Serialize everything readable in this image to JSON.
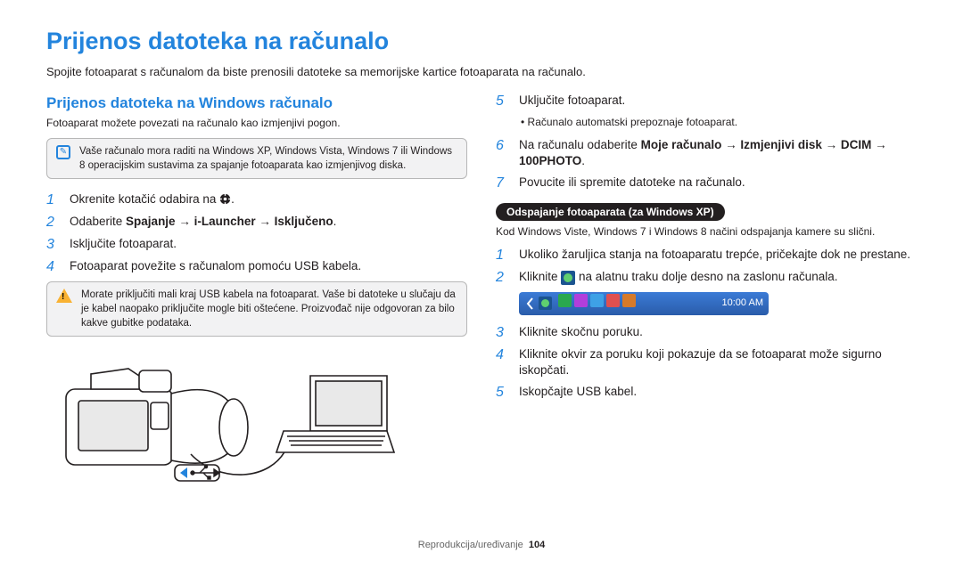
{
  "main_title": "Prijenos datoteka na računalo",
  "subtitle": "Spojite fotoaparat s računalom da biste prenosili datoteke sa memorijske kartice fotoaparata na računalo.",
  "left": {
    "heading": "Prijenos datoteka na Windows računalo",
    "desc": "Fotoaparat možete povezati na računalo kao izmjenjivi pogon.",
    "infobox": "Vaše računalo mora raditi na Windows XP, Windows Vista, Windows 7 ili Windows 8 operacijskim sustavima za spajanje fotoaparata kao izmjenjivog diska.",
    "steps": {
      "s1": "Okrenite kotačić odabira na ",
      "s2_pre": "Odaberite ",
      "s2_bold": "Spajanje → i-Launcher → Isključeno",
      "s3": "Isključite fotoaparat.",
      "s4": "Fotoaparat povežite s računalom pomoću USB kabela."
    },
    "warnbox": "Morate priključiti mali kraj USB kabela na fotoaparat. Vaše bi datoteke u slučaju da je kabel naopako priključite mogle biti oštećene. Proizvođač nije odgovoran za bilo kakve gubitke podataka."
  },
  "right": {
    "steps1": {
      "s5": "Uključite fotoaparat.",
      "s5_bullet": "Računalo automatski prepoznaje fotoaparat.",
      "s6_pre": "Na računalu odaberite ",
      "s6_bold": "Moje računalo → Izmjenjivi disk → DCIM → 100PHOTO",
      "s7": "Povucite ili spremite datoteke na računalo."
    },
    "pill": "Odspajanje fotoaparata (za Windows XP)",
    "pill_sub": "Kod Windows Viste, Windows 7 i Windows 8 načini odspajanja kamere su slični.",
    "steps2": {
      "s1": "Ukoliko žaruljica stanja na fotoaparatu trepće, pričekajte dok ne prestane.",
      "s2_pre": "Kliknite ",
      "s2_post": " na alatnu traku dolje desno na zaslonu računala.",
      "s3": "Kliknite skočnu poruku.",
      "s4": "Kliknite okvir za poruku koji pokazuje da se fotoaparat može sigurno iskopčati.",
      "s5": "Iskopčajte USB kabel."
    },
    "taskbar_time": "10:00 AM",
    "tray_colors": [
      "#2aa84f",
      "#b23edb",
      "#3ea1e6",
      "#e05050",
      "#d67a2a"
    ]
  },
  "footer": {
    "label": "Reprodukcija/uređivanje",
    "page": "104"
  }
}
